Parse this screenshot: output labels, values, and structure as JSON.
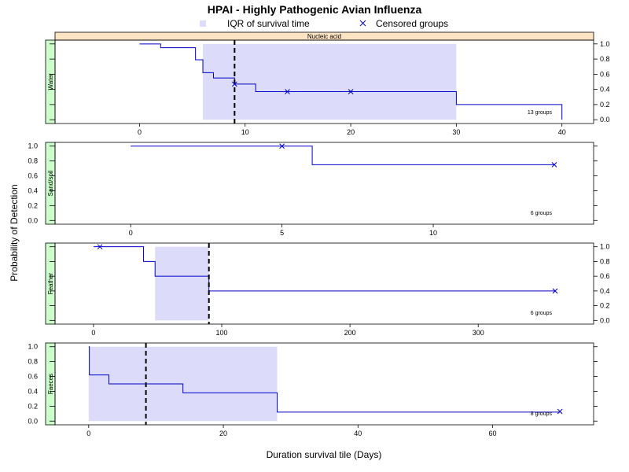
{
  "chart_data": {
    "type": "line",
    "title": "HPAI - Highly Pathogenic Avian Influenza",
    "xlabel": "Duration survival tile (Days)",
    "ylabel": "Probability of Detection",
    "strip_label": "Nucleic acid",
    "legend": {
      "position": "top",
      "items": [
        {
          "label": "IQR of survival time",
          "color": "#e0e0f8"
        },
        {
          "label": "Censored groups",
          "color": "#0000cc"
        }
      ]
    },
    "colors": {
      "step": "#0000cc",
      "iqr": "#dcdcfa",
      "median": "#000000",
      "strip": "#ffe4c4",
      "side_strip": "#ccffcc"
    },
    "panels": [
      {
        "name": "Water",
        "xlim": [
          -8,
          43
        ],
        "ylim": [
          -0.05,
          1.05
        ],
        "xticks": [
          0,
          10,
          20,
          30,
          40
        ],
        "yticks": [
          0.0,
          0.2,
          0.4,
          0.6,
          0.8,
          1.0
        ],
        "y_axis_side": "right",
        "x_axis_side": "bottom",
        "step_x": [
          0,
          2,
          5.3,
          6,
          7,
          9,
          11,
          30,
          40
        ],
        "step_y": [
          1.0,
          0.95,
          0.79,
          0.62,
          0.55,
          0.47,
          0.37,
          0.2,
          0.0
        ],
        "censored": [
          [
            9,
            0.47
          ],
          [
            14,
            0.37
          ],
          [
            20,
            0.37
          ]
        ],
        "iqr": [
          6,
          30
        ],
        "median": 9,
        "groups_label": "13 groups"
      },
      {
        "name": "Sand/soil",
        "xlim": [
          -2.5,
          15.3
        ],
        "ylim": [
          -0.05,
          1.05
        ],
        "xticks": [
          0,
          5,
          10
        ],
        "yticks": [
          0.0,
          0.2,
          0.4,
          0.6,
          0.8,
          1.0
        ],
        "y_axis_side": "left",
        "x_axis_side": "bottom",
        "step_x": [
          0,
          6,
          14
        ],
        "step_y": [
          1.0,
          0.75,
          0.75
        ],
        "censored": [
          [
            5,
            1.0
          ],
          [
            14,
            0.75
          ]
        ],
        "iqr": null,
        "median": null,
        "groups_label": "6 groups"
      },
      {
        "name": "Feather",
        "xlim": [
          -30,
          390
        ],
        "ylim": [
          -0.05,
          1.05
        ],
        "xticks": [
          0,
          100,
          200,
          300
        ],
        "yticks": [
          0.0,
          0.2,
          0.4,
          0.6,
          0.8,
          1.0
        ],
        "y_axis_side": "right",
        "x_axis_side": "bottom",
        "step_x": [
          0,
          39,
          48,
          90,
          360
        ],
        "step_y": [
          1.0,
          0.8,
          0.6,
          0.4,
          0.4
        ],
        "censored": [
          [
            5,
            1.0
          ],
          [
            360,
            0.4
          ]
        ],
        "iqr": [
          48,
          90
        ],
        "median": 90,
        "groups_label": "6 groups"
      },
      {
        "name": "Faeces",
        "xlim": [
          -5,
          75
        ],
        "ylim": [
          -0.05,
          1.05
        ],
        "xticks": [
          0,
          20,
          40,
          60
        ],
        "yticks": [
          0.0,
          0.2,
          0.4,
          0.6,
          0.8,
          1.0
        ],
        "y_axis_side": "left",
        "x_axis_side": "bottom",
        "step_x": [
          0,
          0.1,
          3,
          14,
          28,
          70
        ],
        "step_y": [
          1.0,
          0.62,
          0.5,
          0.38,
          0.12,
          0.12
        ],
        "censored": [
          [
            70,
            0.13
          ]
        ],
        "iqr": [
          0,
          28
        ],
        "median": 8.5,
        "groups_label": "8 groups"
      }
    ]
  }
}
